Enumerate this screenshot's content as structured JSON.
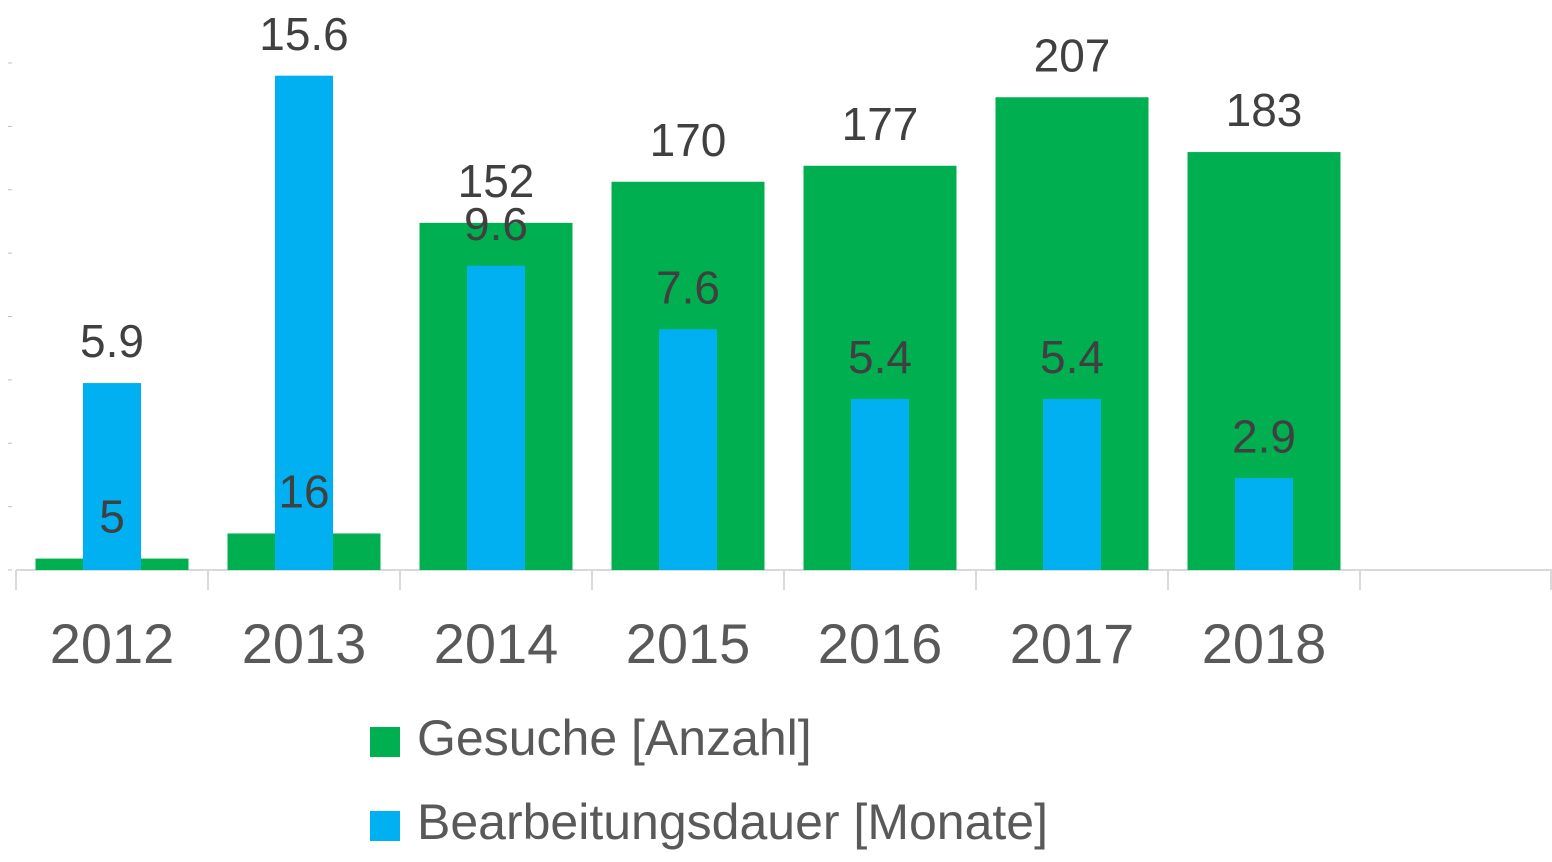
{
  "chart_data": {
    "type": "bar",
    "categories": [
      "2012",
      "2013",
      "2014",
      "2015",
      "2016",
      "2017",
      "2018",
      null
    ],
    "series": [
      {
        "name": "Gesuche [Anzahl]",
        "color": "#00b050",
        "axis": "y2",
        "values": [
          5,
          16,
          152,
          170,
          177,
          207,
          183,
          null
        ]
      },
      {
        "name": "Bearbeitungsdauer [Monate]",
        "color": "#00b0f0",
        "values": [
          5.9,
          15.6,
          9.6,
          7.6,
          5.4,
          5.4,
          2.9,
          null
        ]
      }
    ],
    "ylim": [
      0,
      16
    ],
    "yticks": [
      0,
      2,
      4,
      6,
      8,
      10,
      12,
      14,
      16
    ],
    "y2lim": [
      0,
      222
    ],
    "legend": "bottom"
  }
}
